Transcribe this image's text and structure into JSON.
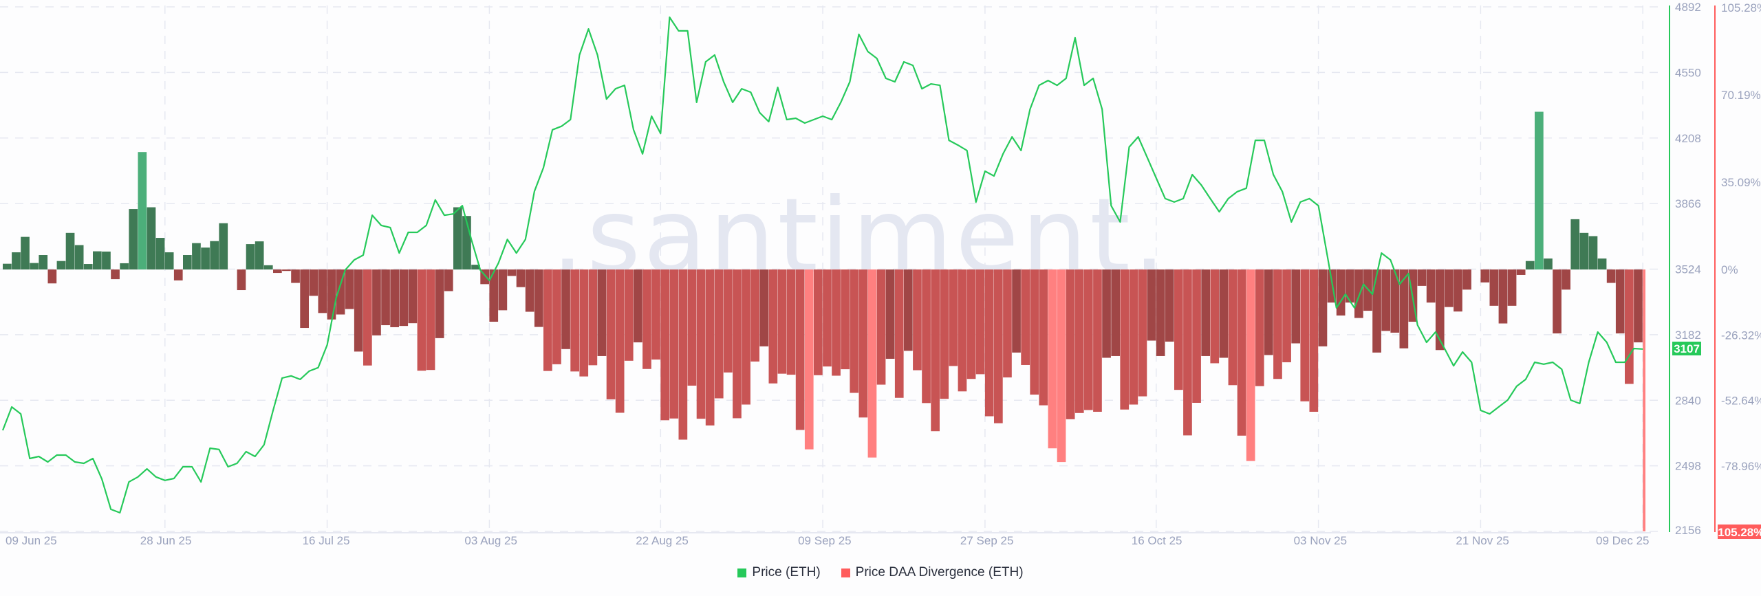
{
  "chart_data": {
    "type": "bar+line",
    "watermark": ".santiment.",
    "legend": {
      "placement": "bottom",
      "items": [
        {
          "label": "Price (ETH)",
          "color": "#26c95a"
        },
        {
          "label": "Price DAA Divergence (ETH)",
          "color": "#ff5c5c"
        }
      ]
    },
    "x_ticks": [
      "09 Jun 25",
      "28 Jun 25",
      "16 Jul 25",
      "03 Aug 25",
      "22 Aug 25",
      "09 Sep 25",
      "27 Sep 25",
      "16 Oct 25",
      "03 Nov 25",
      "21 Nov 25",
      "09 Dec 25"
    ],
    "price_axis": {
      "ticks": [
        "4892",
        "4550",
        "4208",
        "3866",
        "3524",
        "3182",
        "2840",
        "2498",
        "2156"
      ],
      "range": [
        2156,
        4892
      ],
      "last_value": "3107",
      "color": "#26c95a"
    },
    "divergence_axis": {
      "ticks": [
        "105.28%",
        "70.19%",
        "35.09%",
        "0%",
        "-26.32%",
        "-52.64%",
        "-78.96%"
      ],
      "range": [
        -105.28,
        105.28
      ],
      "last_value": "-105.28%",
      "color": "#ff5c5c"
    },
    "grid": true,
    "colors": {
      "price_line": "#26c95a",
      "pos_dark": "#3f7a55",
      "pos_light": "#4caf7a",
      "neg_dark": "#a04646",
      "neg_mid": "#c85454",
      "neg_light": "#ff8080",
      "grid": "#e6e8f1"
    },
    "dates": [
      "2025-06-10",
      "2025-06-11",
      "2025-06-12",
      "2025-06-13",
      "2025-06-14",
      "2025-06-15",
      "2025-06-16",
      "2025-06-17",
      "2025-06-18",
      "2025-06-19",
      "2025-06-20",
      "2025-06-21",
      "2025-06-22",
      "2025-06-23",
      "2025-06-24",
      "2025-06-25",
      "2025-06-26",
      "2025-06-27",
      "2025-06-28",
      "2025-06-29",
      "2025-06-30",
      "2025-07-01",
      "2025-07-02",
      "2025-07-03",
      "2025-07-04",
      "2025-07-05",
      "2025-07-06",
      "2025-07-07",
      "2025-07-08",
      "2025-07-09",
      "2025-07-10",
      "2025-07-11",
      "2025-07-12",
      "2025-07-13",
      "2025-07-14",
      "2025-07-15",
      "2025-07-16",
      "2025-07-17",
      "2025-07-18",
      "2025-07-19",
      "2025-07-20",
      "2025-07-21",
      "2025-07-22",
      "2025-07-23",
      "2025-07-24",
      "2025-07-25",
      "2025-07-26",
      "2025-07-27",
      "2025-07-28",
      "2025-07-29",
      "2025-07-30",
      "2025-07-31",
      "2025-08-01",
      "2025-08-02",
      "2025-08-03",
      "2025-08-04",
      "2025-08-05",
      "2025-08-06",
      "2025-08-07",
      "2025-08-08",
      "2025-08-09",
      "2025-08-10",
      "2025-08-11",
      "2025-08-12",
      "2025-08-13",
      "2025-08-14",
      "2025-08-15",
      "2025-08-16",
      "2025-08-17",
      "2025-08-18",
      "2025-08-19",
      "2025-08-20",
      "2025-08-21",
      "2025-08-22",
      "2025-08-23",
      "2025-08-24",
      "2025-08-25",
      "2025-08-26",
      "2025-08-27",
      "2025-08-28",
      "2025-08-29",
      "2025-08-30",
      "2025-08-31",
      "2025-09-01",
      "2025-09-02",
      "2025-09-03",
      "2025-09-04",
      "2025-09-05",
      "2025-09-06",
      "2025-09-07",
      "2025-09-08",
      "2025-09-09",
      "2025-09-10",
      "2025-09-11",
      "2025-09-12",
      "2025-09-13",
      "2025-09-14",
      "2025-09-15",
      "2025-09-16",
      "2025-09-17",
      "2025-09-18",
      "2025-09-19",
      "2025-09-20",
      "2025-09-21",
      "2025-09-22",
      "2025-09-23",
      "2025-09-24",
      "2025-09-25",
      "2025-09-26",
      "2025-09-27",
      "2025-09-28",
      "2025-09-29",
      "2025-09-30",
      "2025-10-01",
      "2025-10-02",
      "2025-10-03",
      "2025-10-04",
      "2025-10-05",
      "2025-10-06",
      "2025-10-07",
      "2025-10-08",
      "2025-10-09",
      "2025-10-10",
      "2025-10-11",
      "2025-10-12",
      "2025-10-13",
      "2025-10-14",
      "2025-10-15",
      "2025-10-16",
      "2025-10-17",
      "2025-10-18",
      "2025-10-19",
      "2025-10-20",
      "2025-10-21",
      "2025-10-22",
      "2025-10-23",
      "2025-10-24",
      "2025-10-25",
      "2025-10-26",
      "2025-10-27",
      "2025-10-28",
      "2025-10-29",
      "2025-10-30",
      "2025-10-31",
      "2025-11-01",
      "2025-11-02",
      "2025-11-03",
      "2025-11-04",
      "2025-11-05",
      "2025-11-06",
      "2025-11-07",
      "2025-11-08",
      "2025-11-09",
      "2025-11-10",
      "2025-11-11",
      "2025-11-12",
      "2025-11-13",
      "2025-11-14",
      "2025-11-15",
      "2025-11-16",
      "2025-11-17",
      "2025-11-18",
      "2025-11-19",
      "2025-11-20",
      "2025-11-21",
      "2025-11-22",
      "2025-11-23",
      "2025-11-24",
      "2025-11-25",
      "2025-11-26",
      "2025-11-27",
      "2025-11-28",
      "2025-11-29",
      "2025-11-30",
      "2025-12-01",
      "2025-12-02",
      "2025-12-03",
      "2025-12-04",
      "2025-12-05",
      "2025-12-06",
      "2025-12-07",
      "2025-12-08",
      "2025-12-09"
    ],
    "series": [
      {
        "name": "Price (ETH)",
        "type": "line",
        "axis": "price",
        "values": [
          2683,
          2805,
          2769,
          2536,
          2547,
          2518,
          2554,
          2554,
          2518,
          2511,
          2536,
          2429,
          2271,
          2253,
          2414,
          2440,
          2482,
          2440,
          2422,
          2432,
          2493,
          2493,
          2414,
          2590,
          2583,
          2493,
          2511,
          2572,
          2547,
          2608,
          2787,
          2956,
          2967,
          2949,
          2992,
          3010,
          3128,
          3375,
          3519,
          3572,
          3597,
          3805,
          3752,
          3741,
          3608,
          3716,
          3716,
          3752,
          3885,
          3805,
          3812,
          3855,
          3679,
          3519,
          3465,
          3555,
          3679,
          3608,
          3679,
          3930,
          4053,
          4251,
          4269,
          4304,
          4641,
          4777,
          4641,
          4411,
          4465,
          4483,
          4251,
          4125,
          4322,
          4232,
          4838,
          4767,
          4767,
          4394,
          4605,
          4641,
          4501,
          4394,
          4465,
          4447,
          4340,
          4293,
          4472,
          4304,
          4311,
          4286,
          4304,
          4322,
          4304,
          4394,
          4501,
          4749,
          4659,
          4623,
          4519,
          4501,
          4605,
          4587,
          4465,
          4490,
          4483,
          4196,
          4171,
          4143,
          3874,
          4035,
          4010,
          4125,
          4214,
          4143,
          4358,
          4483,
          4508,
          4483,
          4519,
          4731,
          4483,
          4519,
          4358,
          3855,
          3770,
          4161,
          4214,
          4107,
          3999,
          3892,
          3874,
          3892,
          4017,
          3963,
          3892,
          3823,
          3892,
          3928,
          3946,
          4196,
          4196,
          4017,
          3928,
          3770,
          3874,
          3892,
          3855,
          3591,
          3322,
          3393,
          3322,
          3445,
          3393,
          3608,
          3572,
          3445,
          3501,
          3232,
          3142,
          3196,
          3110,
          3020,
          3092,
          3038,
          2787,
          2769,
          2805,
          2841,
          2913,
          2949,
          3038,
          3028,
          3038,
          3002,
          2841,
          2823,
          3038,
          3196,
          3142,
          3038,
          3038,
          3110,
          3107
        ]
      },
      {
        "name": "Price DAA Divergence (ETH)",
        "type": "bar",
        "axis": "divergence",
        "unit": "%",
        "values": [
          2.3,
          6.9,
          13.1,
          2.6,
          5.8,
          -5.6,
          3.4,
          14.7,
          9.8,
          2.2,
          7.3,
          7.2,
          -3.9,
          2.5,
          24.3,
          47.2,
          25,
          12.7,
          6.9,
          -4.4,
          5.8,
          10.6,
          8.8,
          11.4,
          18.6,
          0,
          -8.3,
          10.2,
          11.3,
          1.7,
          -1.4,
          -0.6,
          -5.4,
          -23.5,
          -10.6,
          -17.5,
          -20.1,
          -18.1,
          -15.9,
          -33.0,
          -38.6,
          -26.5,
          -22.4,
          -23.2,
          -22.7,
          -21.6,
          -40.7,
          -40.4,
          -27.6,
          -8.7,
          25,
          21.5,
          1.9,
          -5.9,
          -21,
          -16.4,
          -2.6,
          -7.1,
          -17,
          -23.1,
          -40.8,
          -38.1,
          -32,
          -41,
          -43,
          -38.5,
          -34.8,
          -52.2,
          -57.6,
          -36.7,
          -29.3,
          -40,
          -36.2,
          -60.6,
          -59.9,
          -68.4,
          -46.7,
          -60,
          -62.7,
          -51.8,
          -41.4,
          -59.8,
          -54.3,
          -37,
          -30.9,
          -45.8,
          -41.9,
          -42.3,
          -64.5,
          -72.3,
          -42.5,
          -39,
          -42.7,
          -40.1,
          -49.6,
          -59.5,
          -75.6,
          -46.3,
          -35.9,
          -51.6,
          -32.7,
          -40.5,
          -53.7,
          -65,
          -52,
          -38.8,
          -49,
          -44,
          -42.1,
          -59,
          -61.8,
          -43.4,
          -33.4,
          -38.4,
          -50.3,
          -54.6,
          -71.9,
          -77.4,
          -60.2,
          -57.7,
          -56.5,
          -57.2,
          -35.5,
          -34.8,
          -56.3,
          -54.3,
          -51,
          -28.6,
          -34.8,
          -29,
          -48.4,
          -66.7,
          -53.6,
          -34.8,
          -37.7,
          -35.5,
          -46.5,
          -66.8,
          -77,
          -46.9,
          -34.4,
          -44,
          -37.3,
          -29.7,
          -53,
          -57.2,
          -30.9,
          -13.3,
          -18.5,
          -13.3,
          -19.5,
          -16.6,
          -33.4,
          -24.7,
          -25.4,
          -31.7,
          -21,
          -6.6,
          -13.3,
          -32.4,
          -15.1,
          -16.9,
          -8.1,
          0,
          -5.2,
          -14.6,
          -21.7,
          -14.6,
          -2.2,
          3.4,
          63.4,
          4.4,
          -25.7,
          -8.1,
          20.2,
          14.7,
          13.4,
          4.4,
          -5.4,
          -25.7,
          -46,
          -29.3,
          -105.28
        ]
      }
    ]
  }
}
